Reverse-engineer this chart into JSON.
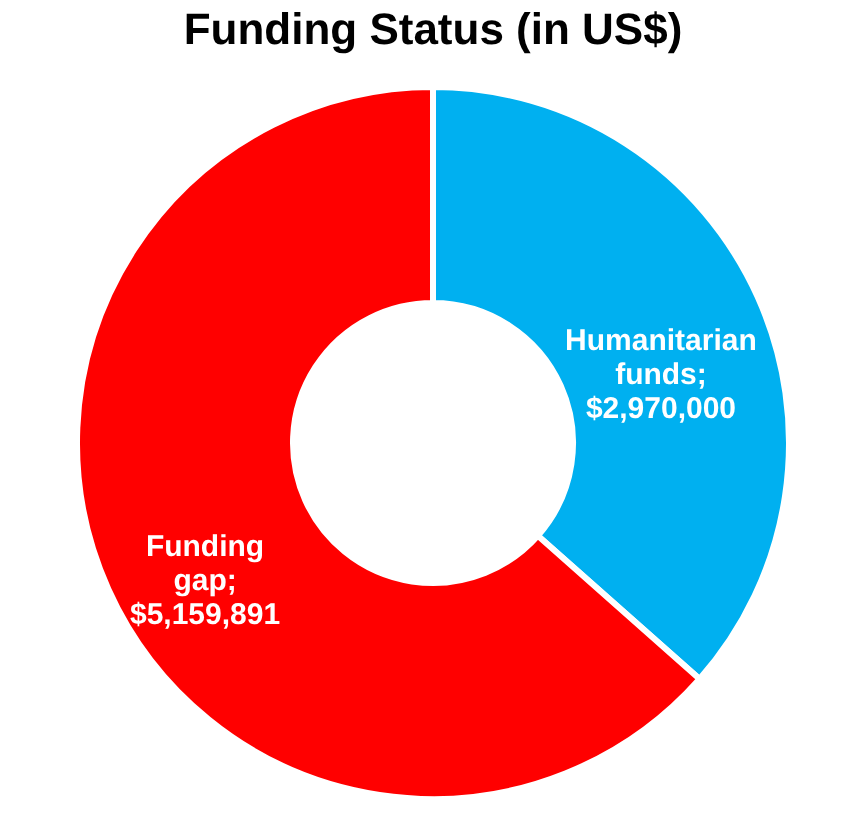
{
  "chart_data": {
    "type": "donut",
    "title": "Funding Status (in US$)",
    "categories": [
      null,
      null
    ],
    "values": [
      2970000,
      5159891
    ],
    "colors": [
      "#00b0f0",
      "#ff0000"
    ],
    "value_labels": [
      "Humanitarian funds; $2,970,000",
      "Funding gap; $5,159,891"
    ],
    "legend": false
  }
}
